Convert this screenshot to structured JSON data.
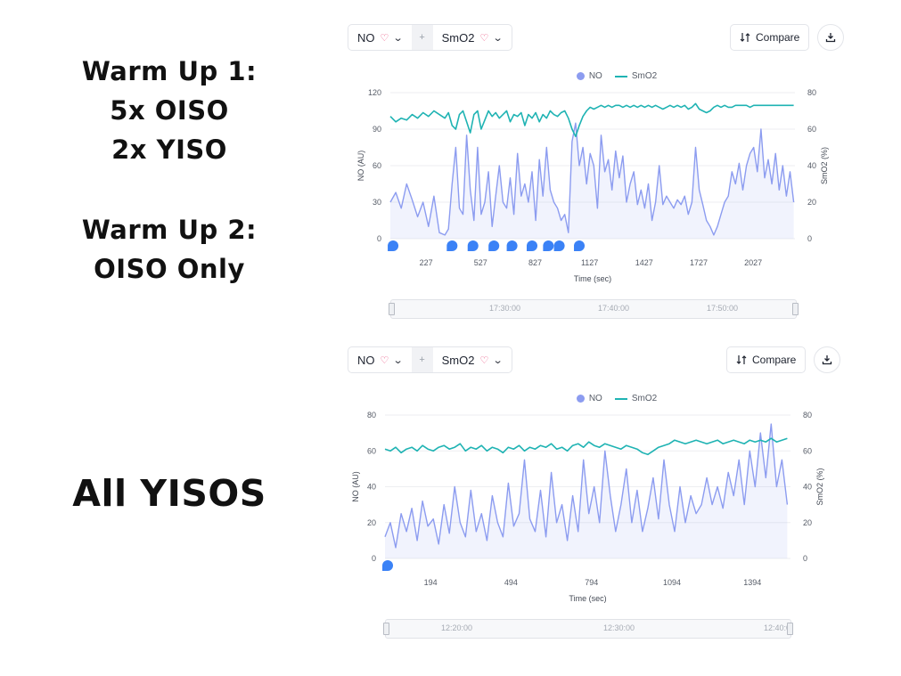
{
  "captions": {
    "block1": [
      "Warm Up 1:",
      "5x OISO",
      "2x YISO"
    ],
    "block2": [
      "Warm Up 2:",
      "OISO Only"
    ],
    "block3": [
      "All YISOS"
    ]
  },
  "panels": [
    {
      "metric_primary": "NO",
      "metric_secondary": "SmO2",
      "plus": "+",
      "compare_label": "Compare",
      "legend": [
        "NO",
        "SmO2"
      ],
      "slider_labels": [
        "17:30:00",
        "17:40:00",
        "17:50:00"
      ]
    },
    {
      "metric_primary": "NO",
      "metric_secondary": "SmO2",
      "plus": "+",
      "compare_label": "Compare",
      "legend": [
        "NO",
        "SmO2"
      ],
      "slider_labels": [
        "12:20:00",
        "12:30:00",
        "12:40:0"
      ]
    }
  ],
  "colors": {
    "no_series": "#8c9cf0",
    "smo2_series": "#1fb3b3",
    "marker": "#3b82f6",
    "heart_icon": "#e94b7b"
  },
  "chart_data": [
    {
      "type": "line",
      "xlabel": "Time (sec)",
      "ylabel": "NO (AU)",
      "ylabel_right": "SmO2 (%)",
      "xlim": [
        30,
        2257
      ],
      "x_ticks": [
        227,
        527,
        827,
        1127,
        1427,
        1727,
        2027
      ],
      "ylim": [
        0,
        120
      ],
      "y_ticks": [
        0,
        30,
        60,
        90,
        120
      ],
      "ylim_right": [
        0,
        80
      ],
      "y_ticks_right": [
        0,
        20,
        40,
        60,
        80
      ],
      "grid": true,
      "legend_position": "top-center",
      "markers_x": [
        45,
        370,
        485,
        600,
        700,
        810,
        900,
        960,
        1070
      ],
      "series": [
        {
          "name": "NO",
          "axis": "left",
          "x": [
            30,
            60,
            90,
            120,
            150,
            180,
            210,
            240,
            270,
            300,
            330,
            350,
            370,
            390,
            410,
            430,
            450,
            470,
            490,
            510,
            530,
            550,
            570,
            590,
            610,
            630,
            650,
            670,
            690,
            710,
            730,
            750,
            770,
            790,
            810,
            830,
            850,
            870,
            890,
            910,
            930,
            950,
            970,
            990,
            1010,
            1030,
            1050,
            1070,
            1090,
            1110,
            1130,
            1150,
            1170,
            1190,
            1210,
            1230,
            1250,
            1270,
            1290,
            1310,
            1330,
            1350,
            1370,
            1390,
            1410,
            1430,
            1450,
            1470,
            1490,
            1510,
            1530,
            1550,
            1570,
            1590,
            1610,
            1630,
            1650,
            1670,
            1690,
            1710,
            1730,
            1750,
            1770,
            1790,
            1810,
            1830,
            1850,
            1870,
            1890,
            1910,
            1930,
            1950,
            1970,
            1990,
            2010,
            2030,
            2050,
            2070,
            2090,
            2110,
            2130,
            2150,
            2170,
            2190,
            2210,
            2230,
            2250
          ],
          "values": [
            30,
            38,
            25,
            45,
            32,
            18,
            30,
            10,
            35,
            5,
            3,
            8,
            45,
            75,
            25,
            20,
            85,
            40,
            15,
            75,
            20,
            30,
            55,
            10,
            35,
            60,
            30,
            25,
            50,
            20,
            70,
            35,
            45,
            30,
            55,
            15,
            65,
            35,
            75,
            40,
            30,
            25,
            15,
            20,
            5,
            80,
            95,
            60,
            75,
            45,
            70,
            60,
            25,
            85,
            55,
            65,
            40,
            72,
            50,
            68,
            30,
            45,
            55,
            28,
            40,
            25,
            45,
            15,
            30,
            60,
            28,
            35,
            30,
            25,
            32,
            28,
            35,
            20,
            30,
            75,
            40,
            28,
            15,
            10,
            3,
            10,
            20,
            30,
            35,
            55,
            45,
            62,
            40,
            60,
            70,
            75,
            55,
            90,
            50,
            65,
            45,
            70,
            40,
            60,
            35,
            55,
            30
          ]
        },
        {
          "name": "SmO2",
          "axis": "right",
          "x": [
            30,
            60,
            90,
            120,
            150,
            180,
            210,
            240,
            270,
            300,
            330,
            350,
            370,
            390,
            410,
            430,
            450,
            470,
            490,
            510,
            530,
            550,
            570,
            590,
            610,
            630,
            650,
            670,
            690,
            710,
            730,
            750,
            770,
            790,
            810,
            830,
            850,
            870,
            890,
            910,
            930,
            950,
            970,
            990,
            1010,
            1030,
            1050,
            1070,
            1090,
            1110,
            1130,
            1150,
            1170,
            1190,
            1210,
            1230,
            1250,
            1270,
            1290,
            1310,
            1330,
            1350,
            1370,
            1390,
            1410,
            1430,
            1450,
            1470,
            1490,
            1510,
            1530,
            1550,
            1570,
            1590,
            1610,
            1630,
            1650,
            1670,
            1690,
            1710,
            1730,
            1750,
            1770,
            1790,
            1810,
            1830,
            1850,
            1870,
            1890,
            1910,
            1930,
            1950,
            1970,
            1990,
            2010,
            2030,
            2050,
            2070,
            2090,
            2110,
            2130,
            2150,
            2170,
            2190,
            2210,
            2230,
            2250
          ],
          "values": [
            67,
            64,
            66,
            65,
            68,
            66,
            69,
            67,
            70,
            68,
            66,
            69,
            62,
            60,
            68,
            70,
            64,
            58,
            68,
            70,
            60,
            65,
            70,
            67,
            69,
            66,
            68,
            70,
            64,
            68,
            67,
            69,
            62,
            68,
            66,
            69,
            64,
            68,
            66,
            70,
            68,
            67,
            69,
            70,
            66,
            60,
            56,
            62,
            67,
            70,
            72,
            71,
            72,
            73,
            72,
            73,
            72,
            73,
            73,
            72,
            73,
            72,
            73,
            72,
            73,
            72,
            73,
            72,
            73,
            72,
            71,
            72,
            73,
            72,
            73,
            72,
            73,
            71,
            72,
            74,
            71,
            70,
            69,
            70,
            72,
            73,
            72,
            73,
            72,
            72,
            73,
            73,
            73,
            73,
            72,
            73,
            73,
            73,
            73,
            73,
            73,
            73,
            73,
            73,
            73,
            73,
            73
          ]
        }
      ]
    },
    {
      "type": "line",
      "xlabel": "Time (sec)",
      "ylabel": "NO (AU)",
      "ylabel_right": "SmO2 (%)",
      "xlim": [
        24,
        1536
      ],
      "x_ticks": [
        194,
        494,
        794,
        1094,
        1394
      ],
      "ylim": [
        0,
        80
      ],
      "y_ticks": [
        0,
        20,
        40,
        60,
        80
      ],
      "ylim_right": [
        0,
        80
      ],
      "y_ticks_right": [
        0,
        20,
        40,
        60,
        80
      ],
      "grid": true,
      "legend_position": "top-center",
      "markers_x": [
        34
      ],
      "series": [
        {
          "name": "NO",
          "axis": "left",
          "x": [
            24,
            44,
            64,
            84,
            104,
            124,
            144,
            164,
            184,
            204,
            224,
            244,
            264,
            284,
            304,
            324,
            344,
            364,
            384,
            404,
            424,
            444,
            464,
            484,
            504,
            524,
            544,
            564,
            584,
            604,
            624,
            644,
            664,
            684,
            704,
            724,
            744,
            764,
            784,
            804,
            824,
            844,
            864,
            884,
            904,
            924,
            944,
            964,
            984,
            1004,
            1024,
            1044,
            1064,
            1084,
            1104,
            1124,
            1144,
            1164,
            1184,
            1204,
            1224,
            1244,
            1264,
            1284,
            1304,
            1324,
            1344,
            1364,
            1384,
            1404,
            1424,
            1444,
            1464,
            1484,
            1504,
            1524
          ],
          "values": [
            12,
            20,
            6,
            25,
            15,
            28,
            10,
            32,
            18,
            22,
            8,
            30,
            14,
            40,
            20,
            12,
            38,
            15,
            25,
            10,
            35,
            20,
            12,
            42,
            18,
            25,
            55,
            22,
            15,
            38,
            12,
            48,
            20,
            30,
            10,
            35,
            15,
            55,
            25,
            40,
            20,
            60,
            35,
            15,
            30,
            50,
            20,
            38,
            15,
            28,
            45,
            22,
            55,
            30,
            15,
            40,
            20,
            35,
            25,
            30,
            45,
            30,
            40,
            28,
            48,
            35,
            55,
            30,
            60,
            40,
            70,
            45,
            75,
            40,
            55,
            30
          ]
        },
        {
          "name": "SmO2",
          "axis": "right",
          "x": [
            24,
            44,
            64,
            84,
            104,
            124,
            144,
            164,
            184,
            204,
            224,
            244,
            264,
            284,
            304,
            324,
            344,
            364,
            384,
            404,
            424,
            444,
            464,
            484,
            504,
            524,
            544,
            564,
            584,
            604,
            624,
            644,
            664,
            684,
            704,
            724,
            744,
            764,
            784,
            804,
            824,
            844,
            864,
            884,
            904,
            924,
            944,
            964,
            984,
            1004,
            1024,
            1044,
            1064,
            1084,
            1104,
            1124,
            1144,
            1164,
            1184,
            1204,
            1224,
            1244,
            1264,
            1284,
            1304,
            1324,
            1344,
            1364,
            1384,
            1404,
            1424,
            1444,
            1464,
            1484,
            1504,
            1524
          ],
          "values": [
            61,
            60,
            62,
            59,
            61,
            62,
            60,
            63,
            61,
            60,
            62,
            63,
            61,
            62,
            64,
            60,
            62,
            61,
            63,
            60,
            62,
            61,
            59,
            62,
            61,
            63,
            60,
            62,
            61,
            63,
            62,
            64,
            61,
            62,
            60,
            63,
            64,
            62,
            65,
            63,
            62,
            64,
            63,
            62,
            61,
            63,
            62,
            61,
            59,
            58,
            60,
            62,
            63,
            64,
            66,
            65,
            64,
            65,
            66,
            65,
            64,
            65,
            66,
            64,
            65,
            66,
            65,
            64,
            66,
            65,
            66,
            65,
            67,
            65,
            66,
            67
          ]
        }
      ]
    }
  ]
}
